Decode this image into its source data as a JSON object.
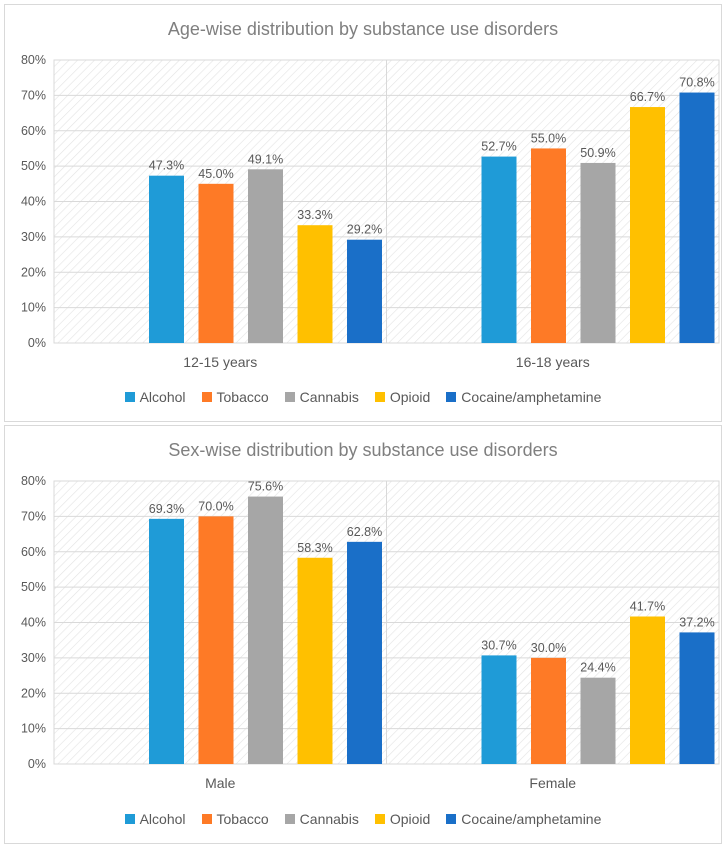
{
  "chart_data": [
    {
      "type": "bar",
      "title": "Age-wise distribution by substance use disorders",
      "categories": [
        "12-15 years",
        "16-18 years"
      ],
      "series": [
        {
          "name": "Alcohol",
          "color": "#1f9bd7",
          "values": [
            47.3,
            52.7
          ],
          "labels": [
            "47.3%",
            "52.7%"
          ]
        },
        {
          "name": "Tobacco",
          "color": "#fe7a26",
          "values": [
            45.0,
            55.0
          ],
          "labels": [
            "45.0%",
            "55.0%"
          ]
        },
        {
          "name": "Cannabis",
          "color": "#a6a6a6",
          "values": [
            49.1,
            50.9
          ],
          "labels": [
            "49.1%",
            "50.9%"
          ]
        },
        {
          "name": "Opioid",
          "color": "#ffc000",
          "values": [
            33.3,
            66.7
          ],
          "labels": [
            "33.3%",
            "66.7%"
          ]
        },
        {
          "name": "Cocaine/amphetamine",
          "color": "#1a6fc8",
          "values": [
            29.2,
            70.8
          ],
          "labels": [
            "29.2%",
            "70.8%"
          ]
        }
      ],
      "yticks": [
        "0%",
        "10%",
        "20%",
        "30%",
        "40%",
        "50%",
        "60%",
        "70%",
        "80%"
      ],
      "ylim": [
        0,
        80
      ],
      "xlabel": "",
      "ylabel": "",
      "legend_position": "bottom"
    },
    {
      "type": "bar",
      "title": "Sex-wise distribution by substance use disorders",
      "categories": [
        "Male",
        "Female"
      ],
      "series": [
        {
          "name": "Alcohol",
          "color": "#1f9bd7",
          "values": [
            69.3,
            30.7
          ],
          "labels": [
            "69.3%",
            "30.7%"
          ]
        },
        {
          "name": "Tobacco",
          "color": "#fe7a26",
          "values": [
            70.0,
            30.0
          ],
          "labels": [
            "70.0%",
            "30.0%"
          ]
        },
        {
          "name": "Cannabis",
          "color": "#a6a6a6",
          "values": [
            75.6,
            24.4
          ],
          "labels": [
            "75.6%",
            "24.4%"
          ]
        },
        {
          "name": "Opioid",
          "color": "#ffc000",
          "values": [
            58.3,
            41.7
          ],
          "labels": [
            "58.3%",
            "41.7%"
          ]
        },
        {
          "name": "Cocaine/amphetamine",
          "color": "#1a6fc8",
          "values": [
            62.8,
            37.2
          ],
          "labels": [
            "62.8%",
            "37.2%"
          ]
        }
      ],
      "yticks": [
        "0%",
        "10%",
        "20%",
        "30%",
        "40%",
        "50%",
        "60%",
        "70%",
        "80%"
      ],
      "ylim": [
        0,
        80
      ],
      "xlabel": "",
      "ylabel": "",
      "legend_position": "bottom"
    }
  ]
}
